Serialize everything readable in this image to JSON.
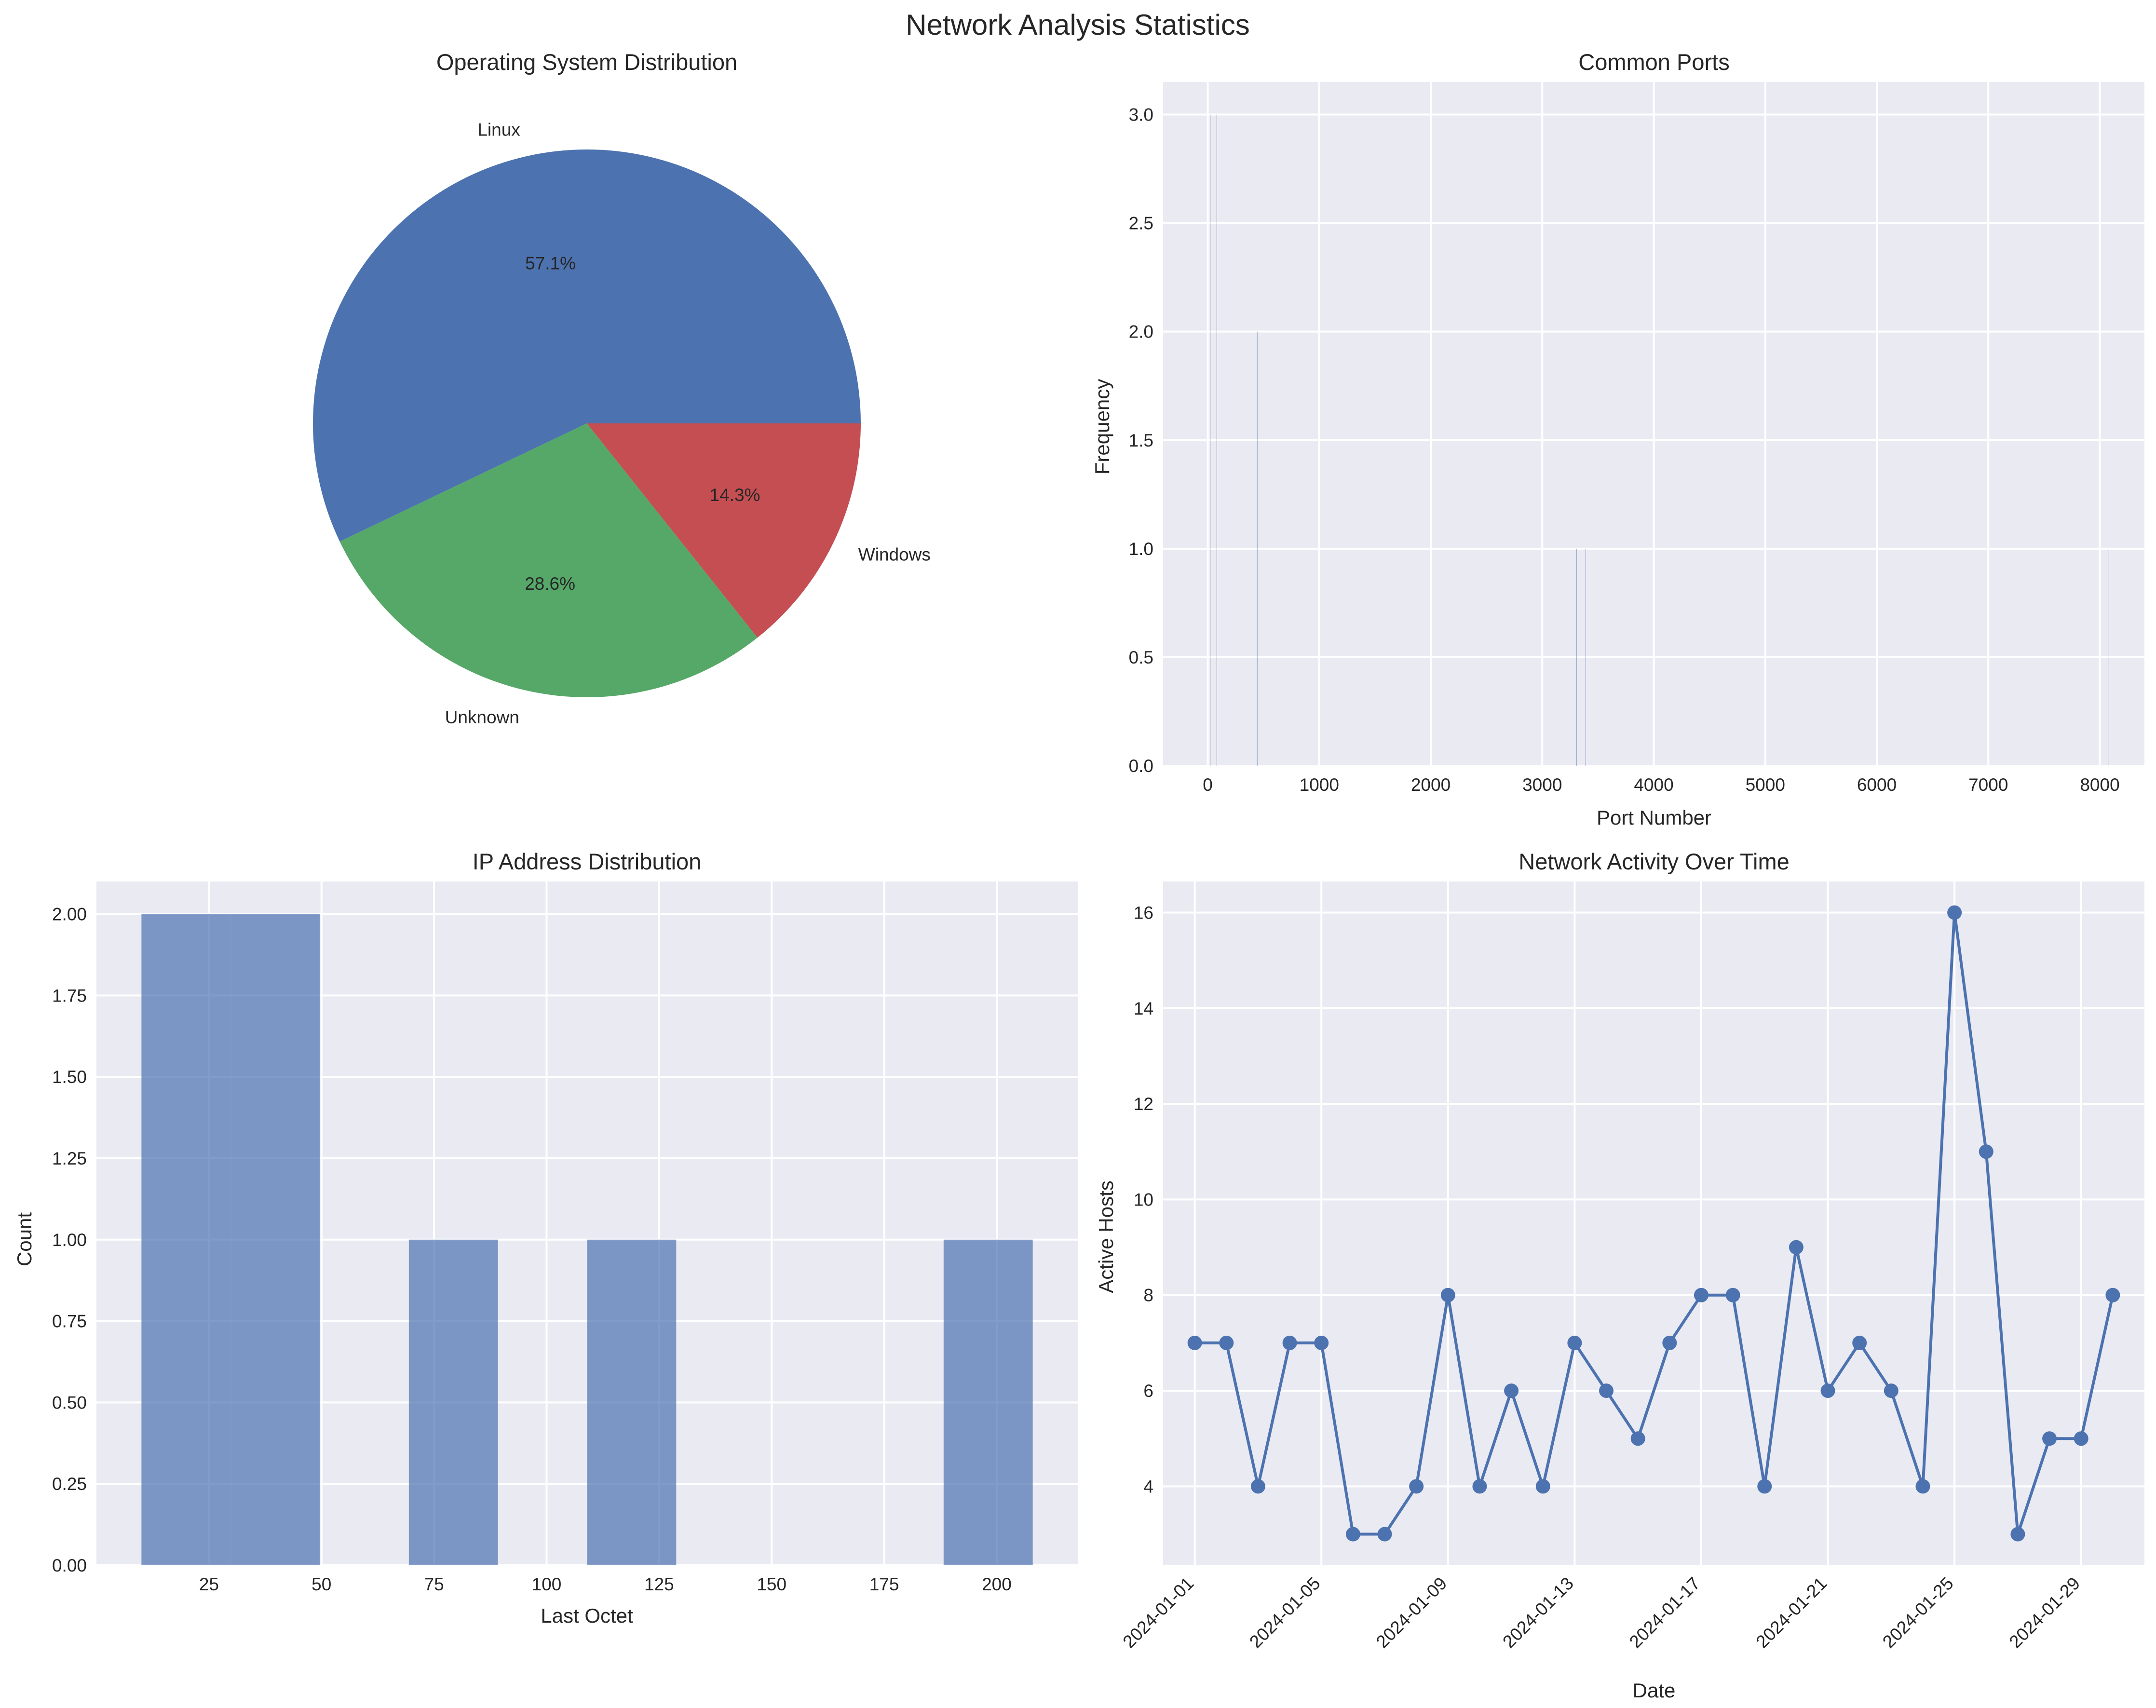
{
  "figure": {
    "title": "Network Analysis Statistics",
    "background": "#ffffff",
    "axes_background": "#eaeaf2",
    "grid_color": "#ffffff"
  },
  "chart_data": [
    {
      "id": "os",
      "type": "pie",
      "title": "Operating System Distribution",
      "labels": [
        "Linux",
        "Unknown",
        "Windows"
      ],
      "values": [
        57.1,
        28.6,
        14.3
      ],
      "pct_labels": [
        "57.1%",
        "28.6%",
        "14.3%"
      ],
      "colors": [
        "#4c72b0",
        "#55a868",
        "#c44e52"
      ],
      "start_angle_deg": 0,
      "direction": "counterclockwise"
    },
    {
      "id": "ports",
      "type": "bar",
      "title": "Common Ports",
      "xlabel": "Port Number",
      "ylabel": "Frequency",
      "xlim": [
        -400,
        8400
      ],
      "ylim": [
        0,
        3.15
      ],
      "xticks": [
        0,
        1000,
        2000,
        3000,
        4000,
        5000,
        6000,
        7000,
        8000
      ],
      "yticks": [
        0.0,
        0.5,
        1.0,
        1.5,
        2.0,
        2.5,
        3.0
      ],
      "ytick_labels": [
        "0.0",
        "0.5",
        "1.0",
        "1.5",
        "2.0",
        "2.5",
        "3.0"
      ],
      "bars": [
        {
          "x": 22,
          "value": 3
        },
        {
          "x": 80,
          "value": 3
        },
        {
          "x": 443,
          "value": 2
        },
        {
          "x": 3306,
          "value": 1
        },
        {
          "x": 3389,
          "value": 1
        },
        {
          "x": 8080,
          "value": 1
        }
      ],
      "bar_width": 0.8,
      "color": "#4c72b0"
    },
    {
      "id": "ip",
      "type": "bar",
      "title": "IP Address Distribution",
      "xlabel": "Last Octet",
      "ylabel": "Count",
      "xlim": [
        0,
        218
      ],
      "ylim": [
        0,
        2.1
      ],
      "xticks": [
        25,
        50,
        75,
        100,
        125,
        150,
        175,
        200
      ],
      "yticks": [
        0.0,
        0.25,
        0.5,
        0.75,
        1.0,
        1.25,
        1.5,
        1.75,
        2.0
      ],
      "ytick_labels": [
        "0.00",
        "0.25",
        "0.50",
        "0.75",
        "1.00",
        "1.25",
        "1.50",
        "1.75",
        "2.00"
      ],
      "bins": [
        {
          "x0": 10,
          "x1": 29.8,
          "count": 2
        },
        {
          "x0": 29.8,
          "x1": 49.6,
          "count": 2
        },
        {
          "x0": 49.6,
          "x1": 69.4,
          "count": 0
        },
        {
          "x0": 69.4,
          "x1": 89.2,
          "count": 1
        },
        {
          "x0": 89.2,
          "x1": 109.0,
          "count": 0
        },
        {
          "x0": 109.0,
          "x1": 128.8,
          "count": 1
        },
        {
          "x0": 128.8,
          "x1": 148.6,
          "count": 0
        },
        {
          "x0": 148.6,
          "x1": 168.4,
          "count": 0
        },
        {
          "x0": 168.4,
          "x1": 188.2,
          "count": 0
        },
        {
          "x0": 188.2,
          "x1": 208.0,
          "count": 1
        }
      ],
      "color": "#4c72b0",
      "alpha": 0.7
    },
    {
      "id": "activity",
      "type": "line",
      "title": "Network Activity Over Time",
      "xlabel": "Date",
      "ylabel": "Active Hosts",
      "x": [
        "2024-01-01",
        "2024-01-02",
        "2024-01-03",
        "2024-01-04",
        "2024-01-05",
        "2024-01-06",
        "2024-01-07",
        "2024-01-08",
        "2024-01-09",
        "2024-01-10",
        "2024-01-11",
        "2024-01-12",
        "2024-01-13",
        "2024-01-14",
        "2024-01-15",
        "2024-01-16",
        "2024-01-17",
        "2024-01-18",
        "2024-01-19",
        "2024-01-20",
        "2024-01-21",
        "2024-01-22",
        "2024-01-23",
        "2024-01-24",
        "2024-01-25",
        "2024-01-26",
        "2024-01-27",
        "2024-01-28",
        "2024-01-29",
        "2024-01-30"
      ],
      "y": [
        7,
        7,
        4,
        7,
        7,
        3,
        3,
        4,
        8,
        4,
        6,
        4,
        7,
        6,
        5,
        7,
        8,
        8,
        4,
        9,
        6,
        7,
        6,
        4,
        16,
        11,
        3,
        5,
        5,
        8
      ],
      "xlim": [
        "2023-12-31",
        "2024-01-31"
      ],
      "xticks": [
        "2024-01-01",
        "2024-01-05",
        "2024-01-09",
        "2024-01-13",
        "2024-01-17",
        "2024-01-21",
        "2024-01-25",
        "2024-01-29"
      ],
      "xtick_rotation": 45,
      "ylim": [
        2.35,
        16.65
      ],
      "yticks": [
        4,
        6,
        8,
        10,
        12,
        14,
        16
      ],
      "color": "#4c72b0",
      "marker": "circle"
    }
  ]
}
